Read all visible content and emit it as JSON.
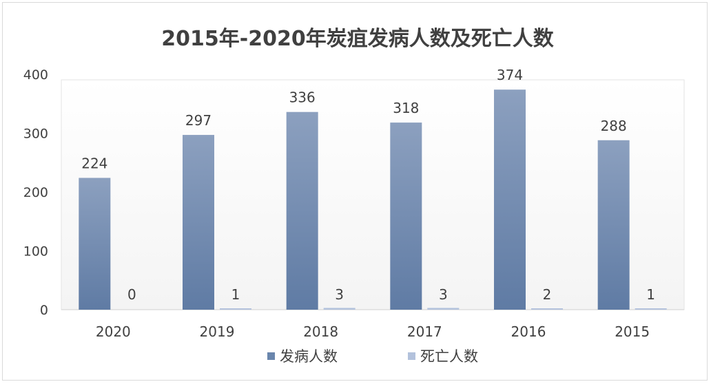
{
  "chart_data": {
    "type": "bar",
    "title": "2015年-2020年炭疽发病人数及死亡人数",
    "xlabel": "",
    "ylabel": "",
    "categories": [
      "2020",
      "2019",
      "2018",
      "2017",
      "2016",
      "2015"
    ],
    "series": [
      {
        "name": "发病人数",
        "values": [
          224,
          297,
          336,
          318,
          374,
          288
        ],
        "color": "#6a86ad"
      },
      {
        "name": "死亡人数",
        "values": [
          0,
          1,
          3,
          3,
          2,
          1
        ],
        "color": "#b3c2dc"
      }
    ],
    "ylim": [
      0,
      400
    ],
    "yticks": [
      0,
      100,
      200,
      300,
      400
    ],
    "grid": false,
    "legend_position": "bottom"
  }
}
